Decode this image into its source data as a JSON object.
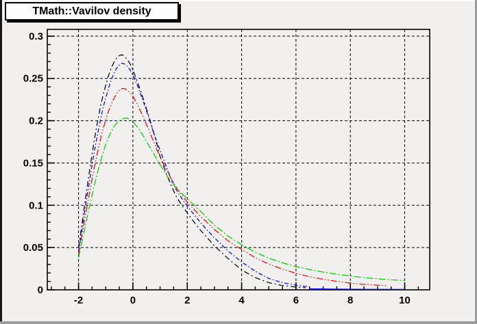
{
  "window": {
    "background": "#f1f0ee",
    "border_highlight": "#fbfbfb",
    "border_dark": "#161616",
    "border_shadow": "#9d9d9d"
  },
  "title": "TMath::Vavilov density",
  "chart_data": {
    "type": "line",
    "title": "TMath::Vavilov density",
    "xlabel": "",
    "ylabel": "",
    "xlim": [
      -3.15,
      10.92
    ],
    "ylim": [
      0,
      0.308
    ],
    "grid": true,
    "grid_style": "dashed",
    "legend": "none",
    "axis_color": "#000000",
    "x_major_ticks": [
      -2,
      0,
      2,
      4,
      6,
      8,
      10
    ],
    "x_tick_labels": [
      "-2",
      "0",
      "2",
      "4",
      "6",
      "8",
      "10"
    ],
    "x_minor_step": 0.5,
    "y_major_ticks": [
      0,
      0.05,
      0.1,
      0.15,
      0.2,
      0.25,
      0.3
    ],
    "y_tick_labels": [
      "0",
      "0.05",
      "0.1",
      "0.15",
      "0.2",
      "0.25",
      "0.3"
    ],
    "y_minor_step": 0.01,
    "series": [
      {
        "name": "curve-black",
        "color": "#000000",
        "line_style": "dash-dot",
        "dash": "8 4 2 4",
        "x": [
          -2,
          -1.9,
          -1.8,
          -1.7,
          -1.6,
          -1.5,
          -1.4,
          -1.3,
          -1.2,
          -1.1,
          -1,
          -0.9,
          -0.8,
          -0.7,
          -0.6,
          -0.5,
          -0.4,
          -0.3,
          -0.2,
          -0.1,
          0,
          0.2,
          0.4,
          0.6,
          0.8,
          1,
          1.2,
          1.4,
          1.6,
          1.8,
          2,
          2.25,
          2.5,
          2.75,
          3,
          3.25,
          3.5,
          4,
          4.5,
          5,
          5.5,
          6,
          6.35
        ],
        "y": [
          0.05,
          0.072,
          0.095,
          0.118,
          0.14,
          0.161,
          0.181,
          0.199,
          0.216,
          0.23,
          0.242,
          0.253,
          0.262,
          0.269,
          0.274,
          0.277,
          0.278,
          0.276,
          0.272,
          0.267,
          0.26,
          0.243,
          0.224,
          0.204,
          0.182,
          0.158,
          0.14,
          0.124,
          0.11,
          0.1,
          0.091,
          0.08,
          0.07,
          0.061,
          0.052,
          0.0445,
          0.037,
          0.0235,
          0.0145,
          0.0085,
          0.005,
          0.0032,
          0.0025
        ]
      },
      {
        "name": "curve-blue",
        "color": "#0000ee",
        "line_style": "dash-dot",
        "dash": "6 3 1.5 3",
        "x": [
          -2,
          -1.9,
          -1.8,
          -1.7,
          -1.6,
          -1.5,
          -1.4,
          -1.3,
          -1.2,
          -1.1,
          -1,
          -0.9,
          -0.8,
          -0.7,
          -0.6,
          -0.5,
          -0.4,
          -0.3,
          -0.2,
          -0.1,
          0,
          0.2,
          0.4,
          0.6,
          0.8,
          1,
          1.2,
          1.4,
          1.6,
          1.8,
          2,
          2.25,
          2.5,
          2.75,
          3,
          3.5,
          4,
          4.5,
          5,
          5.5,
          6,
          6.5
        ],
        "y": [
          0.046,
          0.066,
          0.087,
          0.108,
          0.128,
          0.148,
          0.167,
          0.184,
          0.2,
          0.215,
          0.227,
          0.238,
          0.248,
          0.256,
          0.262,
          0.266,
          0.268,
          0.267,
          0.264,
          0.26,
          0.254,
          0.239,
          0.221,
          0.202,
          0.182,
          0.165,
          0.148,
          0.132,
          0.118,
          0.108,
          0.099,
          0.089,
          0.079,
          0.07,
          0.0615,
          0.046,
          0.033,
          0.022,
          0.0135,
          0.0085,
          0.0055,
          0.0035
        ]
      },
      {
        "name": "curve-blue-axis-tail",
        "color": "#0000ee",
        "line_style": "solid",
        "dash": "",
        "x": [
          6.5,
          7.5,
          8.5,
          10
        ],
        "y": [
          0.0012,
          0.0008,
          0.0006,
          0.0005
        ]
      },
      {
        "name": "curve-red",
        "color": "#ff0000",
        "line_style": "dash-dot-dot",
        "dash": "9 3 1.5 3 1.5 3",
        "x": [
          -2,
          -1.9,
          -1.8,
          -1.7,
          -1.6,
          -1.5,
          -1.4,
          -1.3,
          -1.2,
          -1.1,
          -1,
          -0.9,
          -0.8,
          -0.7,
          -0.6,
          -0.5,
          -0.4,
          -0.3,
          -0.2,
          -0.1,
          0,
          0.2,
          0.4,
          0.6,
          0.8,
          1,
          1.2,
          1.4,
          1.6,
          1.8,
          2,
          2.5,
          3,
          3.5,
          4,
          4.5,
          5,
          5.5,
          6,
          6.5,
          7,
          7.5,
          8,
          8.5,
          9,
          9.35
        ],
        "y": [
          0.042,
          0.06,
          0.078,
          0.096,
          0.114,
          0.131,
          0.148,
          0.163,
          0.177,
          0.19,
          0.201,
          0.211,
          0.219,
          0.226,
          0.232,
          0.236,
          0.238,
          0.238,
          0.236,
          0.233,
          0.229,
          0.217,
          0.203,
          0.188,
          0.172,
          0.157,
          0.144,
          0.132,
          0.121,
          0.112,
          0.104,
          0.0865,
          0.0715,
          0.058,
          0.0477,
          0.038,
          0.0305,
          0.0245,
          0.0195,
          0.0155,
          0.0125,
          0.01,
          0.008,
          0.0065,
          0.0055,
          0.005
        ]
      },
      {
        "name": "curve-green",
        "color": "#00cf00",
        "line_style": "dash-dot",
        "dash": "10 3 2 3",
        "x": [
          -2,
          -1.9,
          -1.8,
          -1.7,
          -1.6,
          -1.5,
          -1.4,
          -1.3,
          -1.2,
          -1.1,
          -1,
          -0.9,
          -0.8,
          -0.7,
          -0.6,
          -0.5,
          -0.4,
          -0.3,
          -0.2,
          -0.1,
          0,
          0.2,
          0.4,
          0.6,
          0.8,
          1,
          1.2,
          1.4,
          1.6,
          1.8,
          2,
          2.5,
          3,
          3.5,
          4,
          4.5,
          5,
          5.5,
          6,
          6.5,
          7,
          7.5,
          8,
          8.5,
          9,
          9.5,
          10
        ],
        "y": [
          0.038,
          0.053,
          0.068,
          0.083,
          0.098,
          0.112,
          0.126,
          0.139,
          0.151,
          0.162,
          0.172,
          0.18,
          0.187,
          0.193,
          0.197,
          0.2,
          0.202,
          0.203,
          0.203,
          0.201,
          0.199,
          0.191,
          0.181,
          0.17,
          0.159,
          0.148,
          0.1375,
          0.128,
          0.12,
          0.114,
          0.108,
          0.0925,
          0.0765,
          0.0635,
          0.0533,
          0.0445,
          0.0375,
          0.032,
          0.0275,
          0.024,
          0.021,
          0.0185,
          0.0163,
          0.0145,
          0.013,
          0.0118,
          0.011
        ]
      }
    ]
  }
}
